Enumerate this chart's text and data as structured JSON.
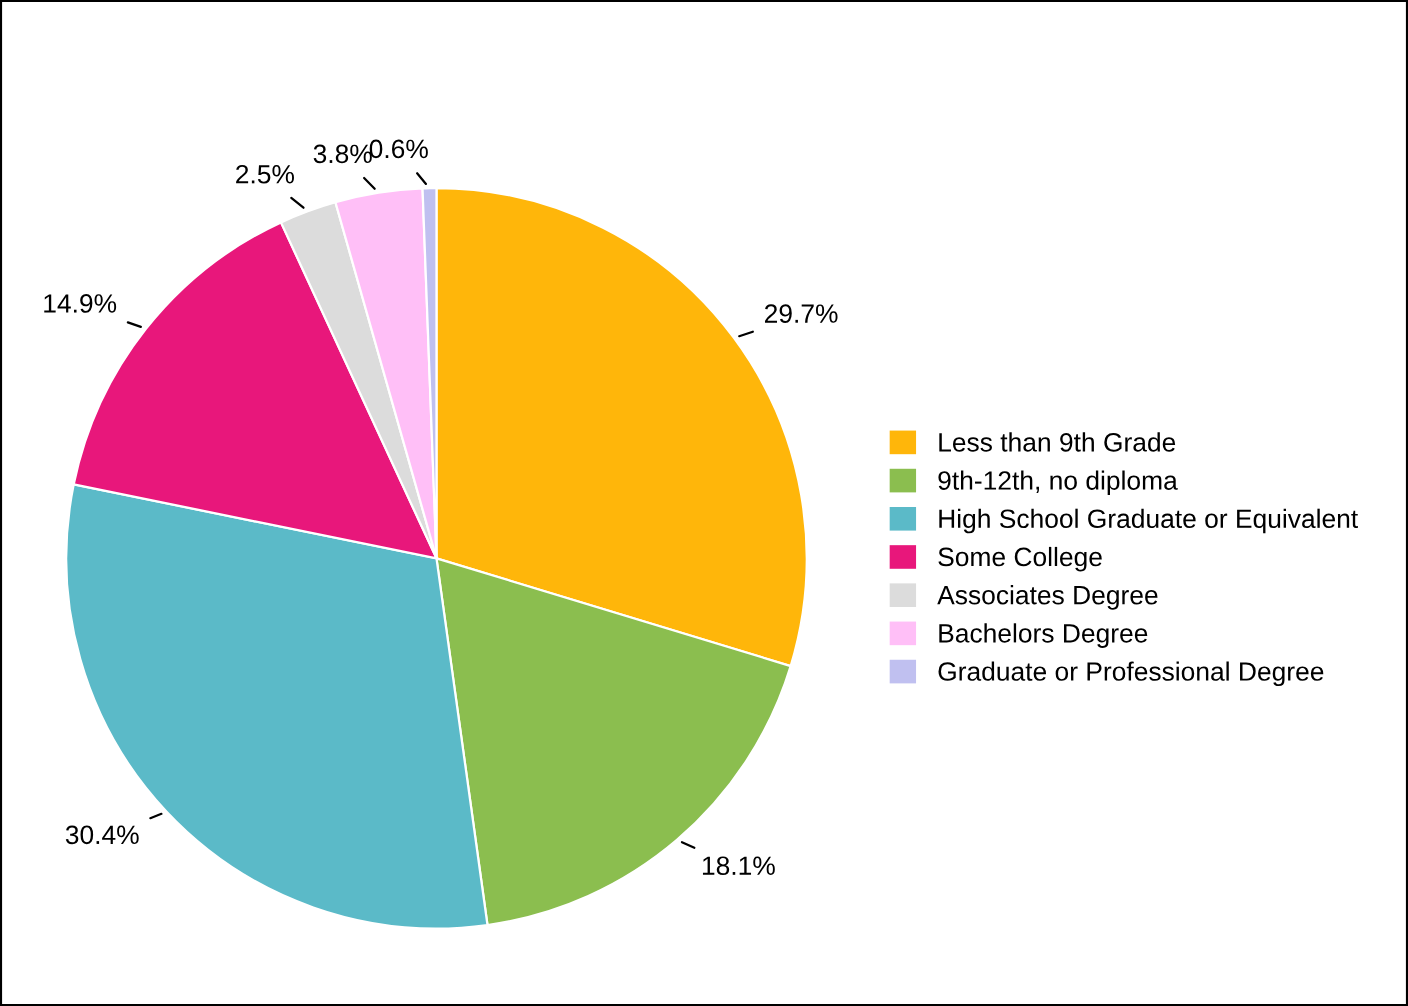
{
  "chart_data": {
    "type": "pie",
    "categories": [
      "Less than 9th Grade",
      "9th-12th, no diploma",
      "High School Graduate or Equivalent",
      "Some College",
      "Associates Degree",
      "Bachelors Degree",
      "Graduate or Professional Degree"
    ],
    "values": [
      29.7,
      18.1,
      30.4,
      14.9,
      2.5,
      3.8,
      0.6
    ],
    "colors": [
      "#ffb60a",
      "#8bbe4f",
      "#5bbac8",
      "#e8177b",
      "#dcdcdc",
      "#ffbff7",
      "#c0c0f0"
    ],
    "value_labels": [
      "29.7%",
      "18.1%",
      "30.4%",
      "14.9%",
      "2.5%",
      "3.8%",
      "0.6%"
    ],
    "legend": "right"
  }
}
